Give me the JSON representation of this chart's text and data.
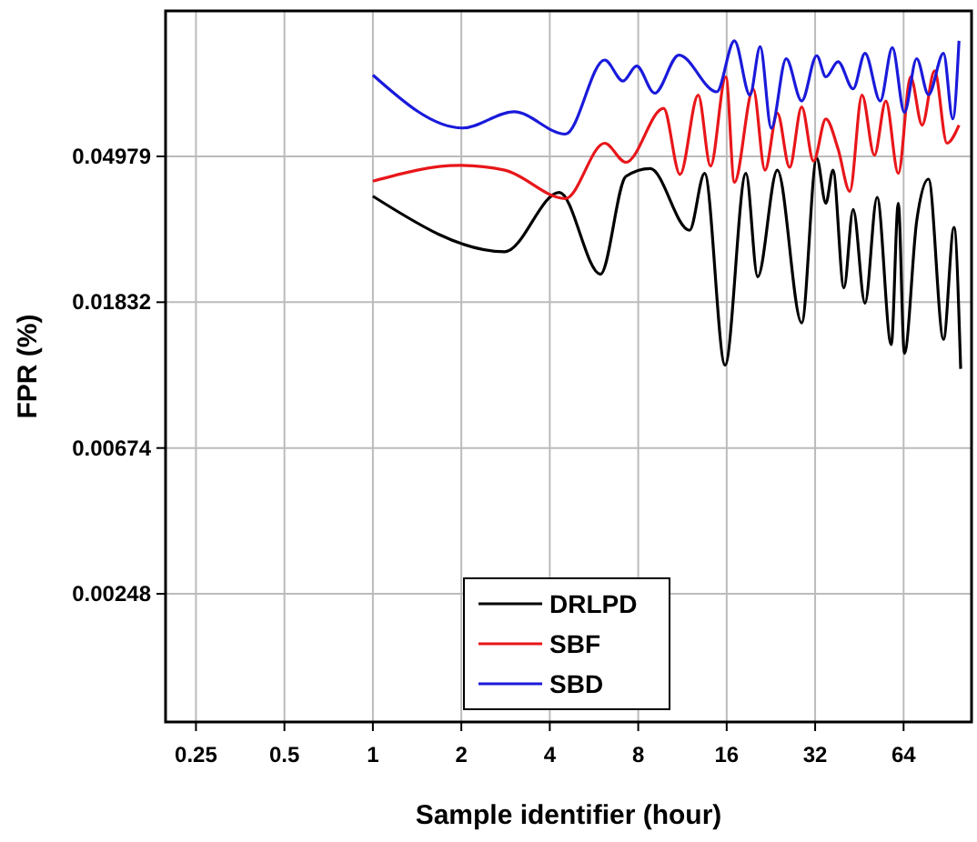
{
  "chart_data": {
    "type": "line",
    "xlabel": "Sample identifier (hour)",
    "ylabel": "FPR (%)",
    "log": "xy",
    "grid": true,
    "legend": "bottom",
    "line_style": "solid",
    "marker": "none",
    "xlim": [
      0.197,
      109
    ],
    "xticks": [
      0.25,
      0.5,
      1,
      2,
      4,
      8,
      16,
      32,
      64
    ],
    "ylim": [
      0.00103,
      0.135
    ],
    "yticks": [
      0.00248,
      0.00674,
      0.01832,
      0.04979
    ],
    "series": [
      {
        "name": "DRLPD",
        "color": "#000000",
        "x": [
          1,
          2.81,
          4.31,
          5.95,
          7.26,
          8.78,
          11.96,
          13.46,
          15.8,
          18.6,
          20.4,
          23.8,
          28.8,
          32.4,
          34.8,
          36.8,
          40.1,
          43.1,
          47.3,
          52,
          58.1,
          61.4,
          64.4,
          70.9,
          77.8,
          87.5,
          95,
          100.1
        ],
        "values": [
          0.0379,
          0.0259,
          0.0389,
          0.0222,
          0.0434,
          0.0458,
          0.03,
          0.0443,
          0.0119,
          0.0443,
          0.0218,
          0.0453,
          0.0159,
          0.0492,
          0.0361,
          0.0453,
          0.0202,
          0.0346,
          0.0182,
          0.0376,
          0.0137,
          0.0361,
          0.0129,
          0.0319,
          0.0426,
          0.0142,
          0.0306,
          0.0116
        ]
      },
      {
        "name": "SBF",
        "color": "#e8161a",
        "x": [
          1,
          1.97,
          2.81,
          4.52,
          6.15,
          7.26,
          9.76,
          11.1,
          12.8,
          14.1,
          15.9,
          17,
          19.7,
          21.6,
          23.8,
          26.2,
          28.8,
          31.6,
          34.8,
          38.3,
          42,
          46.2,
          50.9,
          55.7,
          61.4,
          67.6,
          74,
          81.6,
          89.9,
          98.8
        ],
        "values": [
          0.042,
          0.0468,
          0.0453,
          0.0373,
          0.0545,
          0.0478,
          0.0692,
          0.044,
          0.0758,
          0.0466,
          0.0859,
          0.0417,
          0.0791,
          0.0453,
          0.067,
          0.0462,
          0.0699,
          0.0482,
          0.0643,
          0.0524,
          0.0392,
          0.0758,
          0.0502,
          0.0728,
          0.0443,
          0.0859,
          0.0617,
          0.0895,
          0.0545,
          0.0617
        ]
      },
      {
        "name": "SBD",
        "color": "#1a1adb",
        "x": [
          1,
          2.02,
          3.02,
          4.52,
          6.15,
          7.1,
          7.9,
          9.1,
          11,
          14.8,
          17,
          19.2,
          20.8,
          22.7,
          25.5,
          28.8,
          32.4,
          34.8,
          38.3,
          43.1,
          47.3,
          53.3,
          58.6,
          64.4,
          70.9,
          77.8,
          87.5,
          94.1,
          98.8
        ],
        "values": [
          0.087,
          0.0605,
          0.0676,
          0.058,
          0.0964,
          0.0835,
          0.0925,
          0.0768,
          0.0997,
          0.0775,
          0.11,
          0.0758,
          0.1056,
          0.0604,
          0.0972,
          0.0728,
          0.0993,
          0.0859,
          0.0953,
          0.0791,
          0.101,
          0.0728,
          0.105,
          0.0673,
          0.0973,
          0.076,
          0.101,
          0.0644,
          0.11
        ]
      }
    ]
  }
}
